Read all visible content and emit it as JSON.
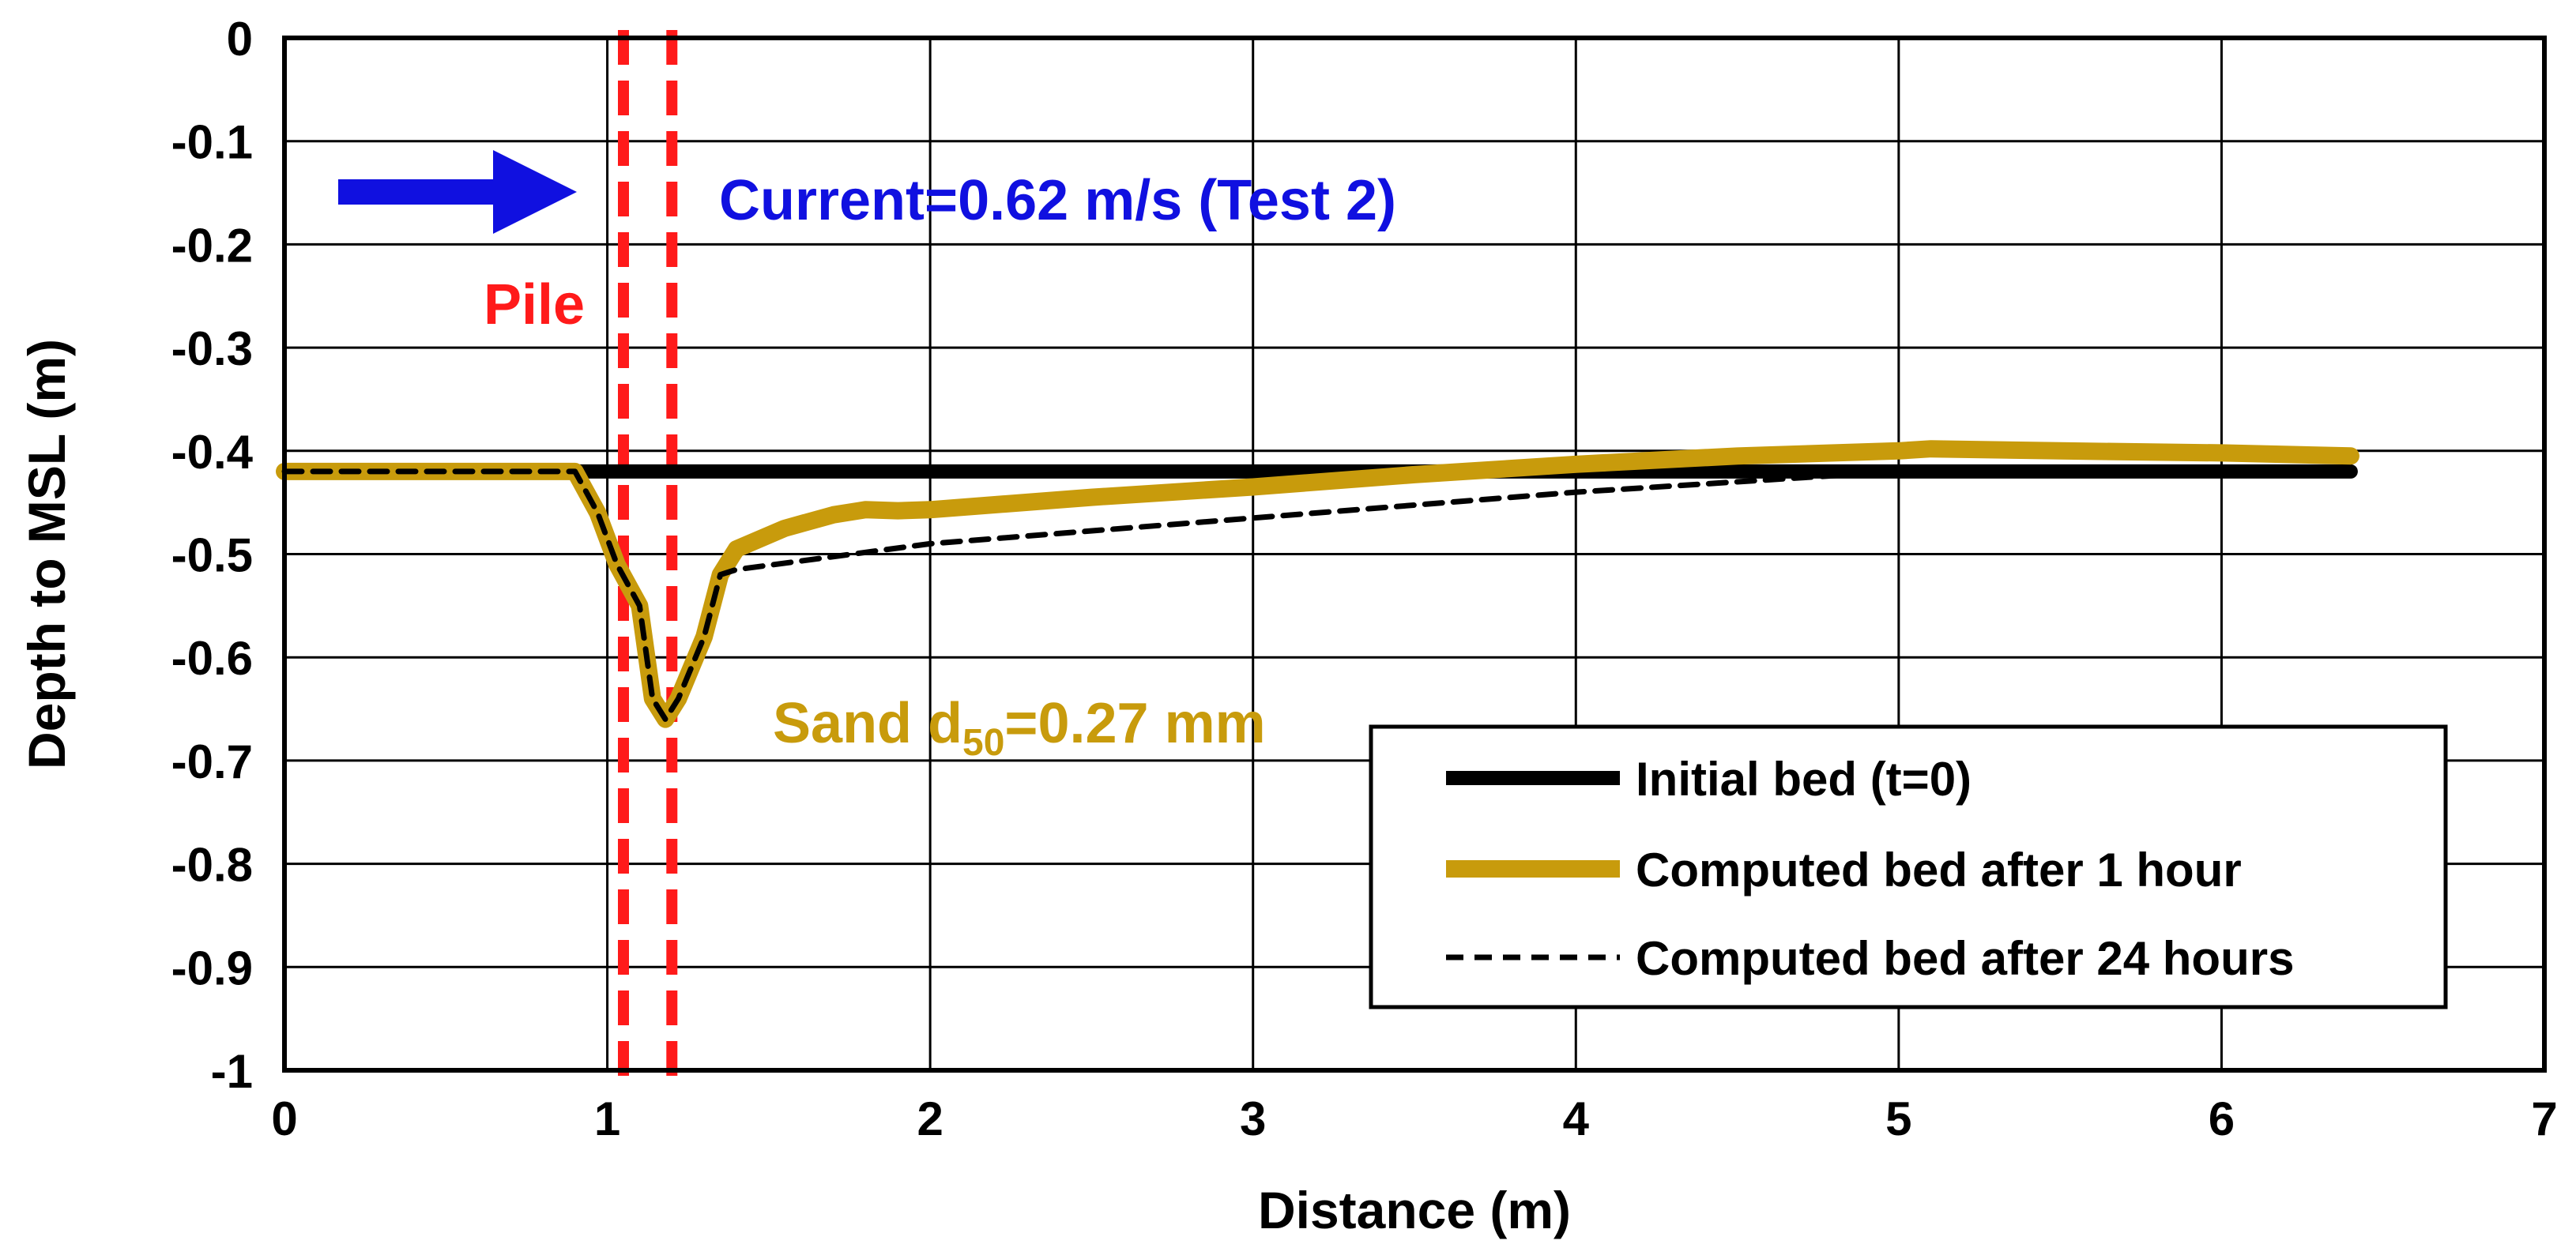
{
  "chart_data": {
    "type": "line",
    "title": "",
    "xlabel": "Distance (m)",
    "ylabel": "Depth to MSL (m)",
    "xlim": [
      0,
      7
    ],
    "ylim": [
      -1,
      0
    ],
    "xticks": [
      "0",
      "1",
      "2",
      "3",
      "4",
      "5",
      "6",
      "7"
    ],
    "yticks": [
      "0",
      "-0.1",
      "-0.2",
      "-0.3",
      "-0.4",
      "-0.5",
      "-0.6",
      "-0.7",
      "-0.8",
      "-0.9",
      "-1"
    ],
    "grid": true,
    "legend_position": "bottom-right",
    "series": [
      {
        "name": "Initial bed (t=0)",
        "color": "#000000",
        "style": "solid-thick",
        "x": [
          0,
          6.4
        ],
        "y": [
          -0.42,
          -0.42
        ]
      },
      {
        "name": "Computed bed after 1 hour",
        "color": "#C89B0C",
        "style": "solid-thick",
        "x": [
          0,
          0.9,
          0.97,
          1.03,
          1.1,
          1.14,
          1.18,
          1.22,
          1.3,
          1.35,
          1.4,
          1.55,
          1.7,
          1.8,
          1.9,
          2.0,
          2.5,
          3.0,
          3.5,
          4.0,
          4.5,
          5.0,
          5.1,
          5.5,
          6.0,
          6.4
        ],
        "y": [
          -0.42,
          -0.42,
          -0.46,
          -0.51,
          -0.55,
          -0.64,
          -0.66,
          -0.64,
          -0.58,
          -0.52,
          -0.495,
          -0.475,
          -0.462,
          -0.457,
          -0.458,
          -0.457,
          -0.445,
          -0.435,
          -0.423,
          -0.413,
          -0.405,
          -0.4,
          -0.398,
          -0.4,
          -0.402,
          -0.405
        ]
      },
      {
        "name": "Computed bed after 24 hours",
        "color": "#000000",
        "style": "dashed",
        "x": [
          0,
          0.9,
          0.97,
          1.03,
          1.1,
          1.14,
          1.18,
          1.22,
          1.3,
          1.35,
          1.4,
          2.0,
          3.0,
          4.0,
          4.5,
          5.0,
          6.4
        ],
        "y": [
          -0.42,
          -0.42,
          -0.46,
          -0.51,
          -0.55,
          -0.64,
          -0.66,
          -0.64,
          -0.58,
          -0.52,
          -0.515,
          -0.49,
          -0.465,
          -0.44,
          -0.43,
          -0.42,
          -0.42
        ]
      }
    ],
    "pile": {
      "label": "Pile",
      "x": [
        1.05,
        1.2
      ],
      "color": "#FF1A1A"
    },
    "annotations": {
      "current_label": "Current=0.62 m/s (Test 2)",
      "current_color": "#1010E0",
      "sand_prefix": "Sand d",
      "sand_subscript": "50",
      "sand_suffix": "=0.27 mm",
      "sand_color": "#C89B0C"
    }
  }
}
